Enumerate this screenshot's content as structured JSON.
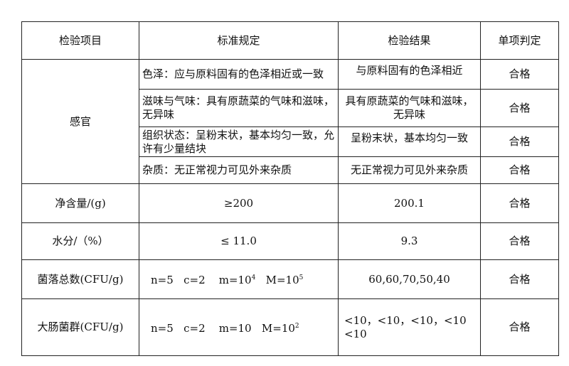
{
  "header": [
    "检验项目",
    "标准规定",
    "检验结果",
    "单项判定"
  ],
  "sensory": {
    "label": "感官",
    "rows": [
      {
        "standard": "色泽：应与原料固有的色泽相近或一致",
        "result": "与原料固有的色泽相近",
        "verdict": "合格"
      },
      {
        "standard": "滋味与气味：具有原蔬菜的气味和滋味，无异味",
        "result": "具有原蔬菜的气味和滋味，无异味",
        "verdict": "合格"
      },
      {
        "standard": "组织状态：呈粉末状，基本均匀一致，允许有少量结块",
        "result": "呈粉末状，基本均匀一致",
        "verdict": "合格"
      },
      {
        "standard": "杂质：无正常视力可见外来杂质",
        "result": "无正常视力可见外来杂质",
        "verdict": "合格"
      }
    ]
  },
  "rows": [
    {
      "item": "净含量/(g)",
      "standard": "≥200",
      "result": "200.1",
      "verdict": "合格"
    },
    {
      "item": "水分/（%）",
      "standard": "≤ 11.0",
      "result": "9.3",
      "verdict": "合格"
    }
  ],
  "colony": {
    "item": "菌落总数(CFU/g)",
    "n": "n=5",
    "c": "c=2",
    "m": "m=10",
    "m_exp": "4",
    "M": "M=10",
    "M_exp": "5",
    "result": "60,60,70,50,40",
    "verdict": "合格"
  },
  "coliform": {
    "item": "大肠菌群(CFU/g)",
    "n": "n=5",
    "c": "c=2",
    "m": "m=10",
    "M": "M=10",
    "M_exp": "2",
    "result": "<10，<10，<10，<10 <10",
    "verdict": "合格"
  }
}
